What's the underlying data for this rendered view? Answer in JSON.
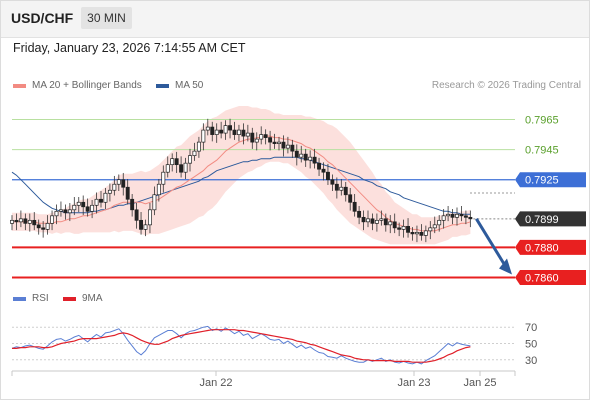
{
  "header": {
    "symbol": "USD/CHF",
    "timeframe": "30 MIN"
  },
  "datetime": "Friday, January 23, 2026 7:14:55 AM CET",
  "legend": {
    "ma20": {
      "label": "MA 20 + Bollinger Bands",
      "color": "#f28b82"
    },
    "ma50": {
      "label": "MA 50",
      "color": "#2d5a9b"
    }
  },
  "credit": "Research © 2026 Trading Central",
  "rsi_legend": {
    "rsi": {
      "label": "RSI",
      "color": "#5b7fd4"
    },
    "ma9": {
      "label": "9MA",
      "color": "#e0202a"
    }
  },
  "chart_data": [
    {
      "type": "candlestick",
      "x_ticks": [
        "Jan 22",
        "Jan 23",
        "Jan 25"
      ],
      "ylim": [
        0.7855,
        0.798
      ],
      "levels": [
        {
          "label": "0.7965",
          "value": 0.7965,
          "kind": "resistance"
        },
        {
          "label": "0.7945",
          "value": 0.7945,
          "kind": "resistance"
        },
        {
          "label": "0.7925",
          "value": 0.7925,
          "kind": "pivot"
        },
        {
          "label": "0.7899",
          "value": 0.7899,
          "kind": "last"
        },
        {
          "label": "0.7880",
          "value": 0.788,
          "kind": "support"
        },
        {
          "label": "0.7860",
          "value": 0.786,
          "kind": "support"
        }
      ],
      "close": [
        0.7898,
        0.7897,
        0.7899,
        0.7896,
        0.7898,
        0.7895,
        0.7893,
        0.7892,
        0.7896,
        0.7901,
        0.7904,
        0.7905,
        0.7903,
        0.7905,
        0.7908,
        0.791,
        0.7907,
        0.7904,
        0.7908,
        0.7912,
        0.791,
        0.7916,
        0.7918,
        0.7922,
        0.7925,
        0.792,
        0.7912,
        0.7905,
        0.7898,
        0.7892,
        0.7895,
        0.7905,
        0.7915,
        0.7922,
        0.793,
        0.7935,
        0.7939,
        0.7935,
        0.793,
        0.7936,
        0.7941,
        0.7944,
        0.795,
        0.7958,
        0.796,
        0.7955,
        0.7958,
        0.7956,
        0.7961,
        0.7958,
        0.7955,
        0.7958,
        0.7954,
        0.7956,
        0.795,
        0.7952,
        0.7955,
        0.7953,
        0.795,
        0.7949,
        0.795,
        0.7946,
        0.7948,
        0.7944,
        0.794,
        0.7942,
        0.7938,
        0.794,
        0.7936,
        0.7932,
        0.793,
        0.7925,
        0.7922,
        0.7918,
        0.792,
        0.7915,
        0.791,
        0.7904,
        0.79,
        0.7897,
        0.7899,
        0.7896,
        0.7898,
        0.7899,
        0.7895,
        0.7897,
        0.7893,
        0.7892,
        0.7894,
        0.789,
        0.7889,
        0.789,
        0.7888,
        0.7891,
        0.7893,
        0.7895,
        0.7898,
        0.7901,
        0.7902,
        0.79,
        0.7902,
        0.7901,
        0.79,
        0.7899
      ],
      "ma20": [
        0.7897,
        0.7897,
        0.7897,
        0.7897,
        0.7897,
        0.7897,
        0.7896,
        0.7896,
        0.7896,
        0.7896,
        0.7897,
        0.7897,
        0.7898,
        0.7899,
        0.7899,
        0.79,
        0.7901,
        0.7901,
        0.7902,
        0.7903,
        0.7904,
        0.7905,
        0.7906,
        0.7908,
        0.7909,
        0.791,
        0.791,
        0.791,
        0.791,
        0.791,
        0.7909,
        0.791,
        0.7911,
        0.7912,
        0.7914,
        0.7916,
        0.7918,
        0.792,
        0.7921,
        0.7923,
        0.7925,
        0.7927,
        0.7929,
        0.7931,
        0.7934,
        0.7936,
        0.7938,
        0.7941,
        0.7944,
        0.7946,
        0.7948,
        0.795,
        0.7951,
        0.7952,
        0.7952,
        0.7953,
        0.7953,
        0.7954,
        0.7954,
        0.7953,
        0.7953,
        0.7952,
        0.7952,
        0.7951,
        0.795,
        0.7949,
        0.7947,
        0.7946,
        0.7944,
        0.7942,
        0.794,
        0.7937,
        0.7935,
        0.7932,
        0.7929,
        0.7926,
        0.7923,
        0.792,
        0.7917,
        0.7914,
        0.7911,
        0.7908,
        0.7905,
        0.7903,
        0.79,
        0.7898,
        0.7896,
        0.7895,
        0.7894,
        0.7893,
        0.7892,
        0.7892,
        0.7891,
        0.7891,
        0.7891,
        0.7891,
        0.7892,
        0.7893,
        0.7894,
        0.7895,
        0.7895,
        0.7896,
        0.7896,
        0.7897
      ],
      "band_width": [
        0.0006,
        0.0006,
        0.0006,
        0.0006,
        0.0006,
        0.0006,
        0.0006,
        0.0006,
        0.0006,
        0.0007,
        0.0007,
        0.0008,
        0.0008,
        0.0009,
        0.001,
        0.0011,
        0.0011,
        0.0011,
        0.0012,
        0.0013,
        0.0014,
        0.0015,
        0.0016,
        0.0017,
        0.0019,
        0.0019,
        0.0019,
        0.0019,
        0.002,
        0.0021,
        0.0021,
        0.0021,
        0.0022,
        0.0023,
        0.0024,
        0.0025,
        0.0026,
        0.0027,
        0.0027,
        0.0028,
        0.0029,
        0.0029,
        0.0029,
        0.003,
        0.003,
        0.003,
        0.0029,
        0.0028,
        0.0027,
        0.0026,
        0.0025,
        0.0024,
        0.0023,
        0.0022,
        0.0021,
        0.002,
        0.0019,
        0.0018,
        0.0017,
        0.0016,
        0.0016,
        0.0016,
        0.0016,
        0.0017,
        0.0018,
        0.0019,
        0.002,
        0.0021,
        0.0022,
        0.0023,
        0.0024,
        0.0025,
        0.0026,
        0.0027,
        0.0027,
        0.0027,
        0.0027,
        0.0026,
        0.0025,
        0.0024,
        0.0023,
        0.0022,
        0.002,
        0.0019,
        0.0017,
        0.0016,
        0.0014,
        0.0013,
        0.0012,
        0.0011,
        0.001,
        0.001,
        0.0009,
        0.0009,
        0.0009,
        0.0009,
        0.0009,
        0.0009,
        0.0009,
        0.0008,
        0.0008,
        0.0008,
        0.0008,
        0.0008
      ],
      "ma50": [
        0.793,
        0.7928,
        0.7925,
        0.7922,
        0.7919,
        0.7916,
        0.7913,
        0.791,
        0.7908,
        0.7906,
        0.7905,
        0.7904,
        0.7903,
        0.7903,
        0.7903,
        0.7903,
        0.7903,
        0.7903,
        0.7904,
        0.7904,
        0.7905,
        0.7905,
        0.7906,
        0.7907,
        0.7908,
        0.7908,
        0.7909,
        0.7909,
        0.791,
        0.7911,
        0.7912,
        0.7913,
        0.7914,
        0.7915,
        0.7916,
        0.7917,
        0.7918,
        0.7919,
        0.792,
        0.7921,
        0.7922,
        0.7923,
        0.7924,
        0.7926,
        0.7927,
        0.7929,
        0.7931,
        0.7932,
        0.7933,
        0.7934,
        0.7935,
        0.7936,
        0.7937,
        0.7937,
        0.7938,
        0.7938,
        0.7939,
        0.7939,
        0.7939,
        0.794,
        0.794,
        0.794,
        0.794,
        0.794,
        0.794,
        0.7939,
        0.7939,
        0.7938,
        0.7937,
        0.7936,
        0.7935,
        0.7934,
        0.7933,
        0.7932,
        0.7931,
        0.793,
        0.7929,
        0.7928,
        0.7927,
        0.7925,
        0.7924,
        0.7923,
        0.7921,
        0.792,
        0.7919,
        0.7917,
        0.7916,
        0.7915,
        0.7913,
        0.7912,
        0.7911,
        0.791,
        0.7909,
        0.7908,
        0.7907,
        0.7906,
        0.7905,
        0.7904,
        0.7904,
        0.7903,
        0.7903,
        0.7902,
        0.7902,
        0.7902
      ],
      "projection": {
        "from": 0.7899,
        "to": 0.786
      }
    },
    {
      "type": "line",
      "name": "RSI",
      "y_ticks": [
        "70",
        "50",
        "30"
      ],
      "ylim": [
        15,
        85
      ],
      "rsi": [
        44,
        46,
        45,
        47,
        48,
        46,
        44,
        43,
        47,
        52,
        55,
        56,
        53,
        55,
        58,
        60,
        56,
        52,
        57,
        61,
        58,
        63,
        64,
        66,
        68,
        62,
        54,
        47,
        40,
        36,
        41,
        50,
        57,
        60,
        63,
        66,
        66,
        62,
        57,
        62,
        65,
        66,
        68,
        70,
        71,
        66,
        68,
        65,
        69,
        66,
        62,
        65,
        60,
        62,
        56,
        59,
        62,
        59,
        55,
        54,
        55,
        50,
        53,
        49,
        45,
        48,
        44,
        46,
        42,
        39,
        38,
        34,
        33,
        32,
        35,
        32,
        30,
        28,
        27,
        27,
        30,
        28,
        30,
        32,
        28,
        30,
        27,
        26,
        28,
        26,
        25,
        27,
        25,
        29,
        32,
        35,
        40,
        45,
        50,
        47,
        51,
        49,
        48,
        47
      ],
      "ma9": [
        44,
        44,
        45,
        45,
        46,
        46,
        46,
        45,
        45,
        46,
        48,
        50,
        51,
        52,
        53,
        55,
        56,
        56,
        56,
        56,
        57,
        58,
        59,
        60,
        62,
        63,
        62,
        60,
        57,
        54,
        52,
        50,
        49,
        49,
        51,
        53,
        56,
        58,
        60,
        61,
        62,
        63,
        64,
        65,
        66,
        67,
        67,
        67,
        67,
        67,
        67,
        66,
        66,
        65,
        64,
        63,
        62,
        61,
        60,
        59,
        58,
        57,
        56,
        55,
        53,
        52,
        51,
        49,
        48,
        46,
        44,
        42,
        40,
        38,
        36,
        35,
        34,
        32,
        31,
        30,
        30,
        29,
        29,
        29,
        29,
        29,
        28,
        28,
        28,
        28,
        27,
        27,
        27,
        27,
        28,
        29,
        31,
        33,
        36,
        38,
        41,
        43,
        45,
        46
      ]
    }
  ]
}
